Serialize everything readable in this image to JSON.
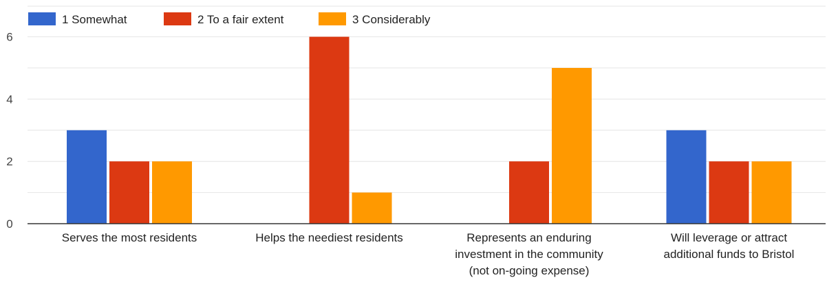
{
  "chart_data": {
    "type": "bar",
    "categories": [
      [
        "Serves the most residents"
      ],
      [
        "Helps the neediest residents"
      ],
      [
        "Represents an enduring",
        "investment in the community",
        "(not on-going expense)"
      ],
      [
        "Will leverage or attract",
        "additional funds to Bristol"
      ]
    ],
    "series": [
      {
        "name": "1 Somewhat",
        "color": "#3366cc",
        "values": [
          3,
          0,
          0,
          3
        ]
      },
      {
        "name": "2 To a fair extent",
        "color": "#dc3912",
        "values": [
          2,
          6,
          2,
          2
        ]
      },
      {
        "name": "3 Considerably",
        "color": "#ff9900",
        "values": [
          2,
          1,
          5,
          2
        ]
      }
    ],
    "y_ticks": [
      0,
      2,
      4,
      6
    ],
    "ylim": [
      0,
      6.6
    ],
    "grid": true,
    "legend_position": "top-left",
    "title": "",
    "xlabel": "",
    "ylabel": ""
  }
}
